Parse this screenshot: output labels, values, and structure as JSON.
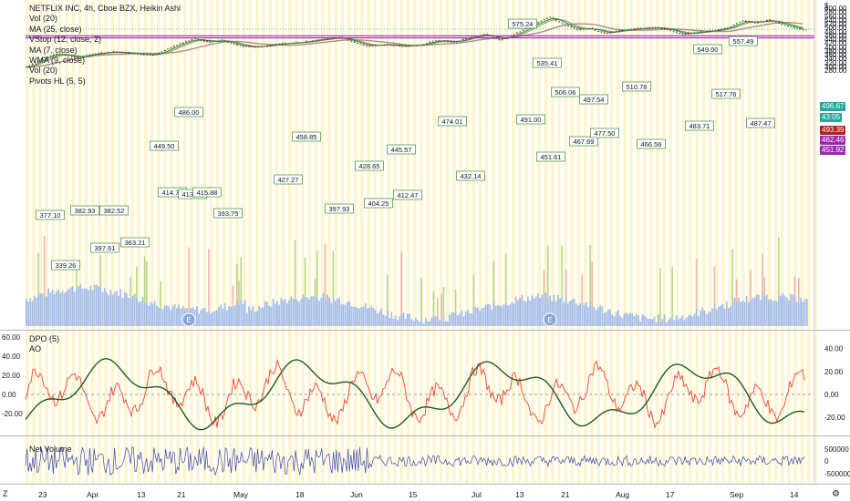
{
  "legend": {
    "title": "NETFLIX INC, 4h, Cboe BZX, Heikin Ashi",
    "lines": [
      "Vol (20)",
      "MA (25, close)",
      "VStop (12, close, 2)",
      "MA (7, close)",
      "WMA (9, close)",
      "Vol (20)",
      "Pivots HL (5, 5)"
    ]
  },
  "price_axis": {
    "currency_label": "$",
    "ticks": [
      "600.00",
      "580.00",
      "560.00",
      "540.00",
      "520.00",
      "500.00",
      "480.00",
      "460.00",
      "440.00",
      "420.00",
      "400.00",
      "380.00",
      "360.00",
      "340.00",
      "320.00",
      "300.00",
      "280.00"
    ],
    "tags": {
      "last": "496.67",
      "countdown": "43:05",
      "ma": "493.39",
      "line1": "462.46",
      "line2": "451.92"
    }
  },
  "pivots": [
    {
      "label": "377.10"
    },
    {
      "label": "382.93"
    },
    {
      "label": "382.52"
    },
    {
      "label": "397.61"
    },
    {
      "label": "363.21"
    },
    {
      "label": "339.26"
    },
    {
      "label": "449.50"
    },
    {
      "label": "486.00"
    },
    {
      "label": "414.76"
    },
    {
      "label": "413.67"
    },
    {
      "label": "415.88"
    },
    {
      "label": "393.75"
    },
    {
      "label": "458.85"
    },
    {
      "label": "427.27"
    },
    {
      "label": "397.93"
    },
    {
      "label": "428.65"
    },
    {
      "label": "445.57"
    },
    {
      "label": "404.25"
    },
    {
      "label": "412.47"
    },
    {
      "label": "474.01"
    },
    {
      "label": "432.14"
    },
    {
      "label": "575.24"
    },
    {
      "label": "535.41"
    },
    {
      "label": "491.00"
    },
    {
      "label": "451.61"
    },
    {
      "label": "506.06"
    },
    {
      "label": "497.54"
    },
    {
      "label": "467.69"
    },
    {
      "label": "477.50"
    },
    {
      "label": "510.78"
    },
    {
      "label": "466.56"
    },
    {
      "label": "483.71"
    },
    {
      "label": "549.00"
    },
    {
      "label": "557.49"
    },
    {
      "label": "517.76"
    },
    {
      "label": "487.47"
    }
  ],
  "earnings_markers": [
    "E",
    "E"
  ],
  "dpo_pane": {
    "legend": [
      "DPO (5)",
      "AO"
    ],
    "left_ticks": [
      "60.00",
      "40.00",
      "20.00",
      "0.00",
      "-20.00"
    ],
    "right_ticks": [
      "40.00",
      "20.00",
      "0.00",
      "-20.00",
      "-40.00"
    ]
  },
  "netvol_pane": {
    "legend": "Net Volume",
    "right_ticks": [
      "500000",
      "0",
      "-500000"
    ]
  },
  "time_axis": {
    "labels": [
      "23",
      "Apr",
      "13",
      "21",
      "May",
      "18",
      "Jun",
      "15",
      "Jul",
      "13",
      "21",
      "Aug",
      "17",
      "Sep",
      "14"
    ]
  },
  "toolbar": {
    "zoom_label": "Z",
    "settings_icon": "gear-icon"
  },
  "colors": {
    "up": "#26a69a",
    "down": "#ef5350",
    "vol_blue": "#5b8def",
    "line_purple": "#9c27b0",
    "dpo": "#f44336",
    "ao": "#1b5e20",
    "ma": "#b08080",
    "wma": "#808040"
  }
}
